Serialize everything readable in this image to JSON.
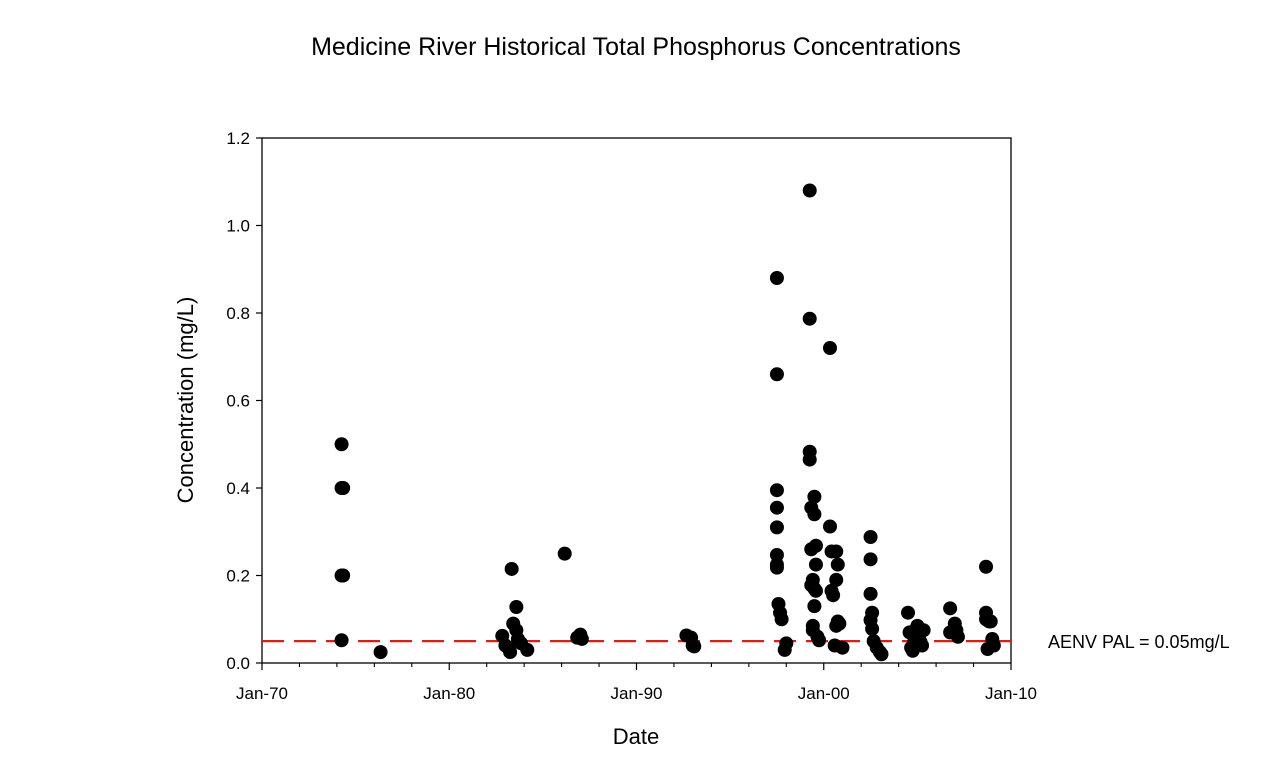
{
  "chart_data": {
    "type": "scatter",
    "title": "Medicine River Historical Total Phosphorus Concentrations",
    "xlabel": "Date",
    "ylabel": "Concentration (mg/L)",
    "xlim": [
      "1970-01",
      "2010-01"
    ],
    "ylim": [
      0,
      1.2
    ],
    "x_ticks": [
      "Jan-70",
      "Jan-80",
      "Jan-90",
      "Jan-00",
      "Jan-10"
    ],
    "y_ticks": [
      "0.0",
      "0.2",
      "0.4",
      "0.6",
      "0.8",
      "1.0",
      "1.2"
    ],
    "grid": false,
    "marker_color": "#000000",
    "reference_line": {
      "label": "AENV PAL = 0.05mg/L",
      "value": 0.05,
      "color": "#d42020",
      "style": "dashed"
    },
    "series": [
      {
        "points": [
          [
            "1974-04",
            0.5
          ],
          [
            "1974-04",
            0.4
          ],
          [
            "1974-05",
            0.4
          ],
          [
            "1974-04",
            0.2
          ],
          [
            "1974-05",
            0.2
          ],
          [
            "1974-04",
            0.052
          ],
          [
            "1976-05",
            0.025
          ],
          [
            "1982-11",
            0.062
          ],
          [
            "1983-01",
            0.04
          ],
          [
            "1983-03",
            0.035
          ],
          [
            "1983-04",
            0.025
          ],
          [
            "1983-05",
            0.215
          ],
          [
            "1983-06",
            0.09
          ],
          [
            "1983-08",
            0.128
          ],
          [
            "1983-08",
            0.075
          ],
          [
            "1983-09",
            0.055
          ],
          [
            "1983-11",
            0.045
          ],
          [
            "1984-03",
            0.03
          ],
          [
            "1986-03",
            0.25
          ],
          [
            "1986-11",
            0.058
          ],
          [
            "1987-01",
            0.065
          ],
          [
            "1987-02",
            0.055
          ],
          [
            "1992-09",
            0.063
          ],
          [
            "1992-12",
            0.058
          ],
          [
            "1993-01",
            0.04
          ],
          [
            "1993-02",
            0.038
          ],
          [
            "1997-07",
            0.88
          ],
          [
            "1997-07",
            0.66
          ],
          [
            "1997-07",
            0.395
          ],
          [
            "1997-07",
            0.355
          ],
          [
            "1997-07",
            0.31
          ],
          [
            "1997-07",
            0.247
          ],
          [
            "1997-07",
            0.225
          ],
          [
            "1997-07",
            0.218
          ],
          [
            "1997-08",
            0.135
          ],
          [
            "1997-09",
            0.115
          ],
          [
            "1997-10",
            0.1
          ],
          [
            "1997-12",
            0.03
          ],
          [
            "1998-01",
            0.045
          ],
          [
            "1999-04",
            1.08
          ],
          [
            "1999-04",
            0.787
          ],
          [
            "1999-04",
            0.483
          ],
          [
            "1999-04",
            0.465
          ],
          [
            "1999-05",
            0.355
          ],
          [
            "1999-07",
            0.38
          ],
          [
            "1999-07",
            0.34
          ],
          [
            "1999-05",
            0.26
          ],
          [
            "1999-08",
            0.268
          ],
          [
            "1999-08",
            0.225
          ],
          [
            "1999-06",
            0.19
          ],
          [
            "1999-05",
            0.178
          ],
          [
            "1999-07",
            0.17
          ],
          [
            "1999-08",
            0.165
          ],
          [
            "1999-07",
            0.13
          ],
          [
            "1999-06",
            0.085
          ],
          [
            "1999-06",
            0.075
          ],
          [
            "1999-09",
            0.06
          ],
          [
            "1999-10",
            0.052
          ],
          [
            "2000-05",
            0.72
          ],
          [
            "2000-05",
            0.312
          ],
          [
            "2000-06",
            0.255
          ],
          [
            "2000-09",
            0.255
          ],
          [
            "2000-10",
            0.225
          ],
          [
            "2000-09",
            0.19
          ],
          [
            "2000-06",
            0.165
          ],
          [
            "2000-07",
            0.155
          ],
          [
            "2000-10",
            0.095
          ],
          [
            "2000-09",
            0.085
          ],
          [
            "2000-11",
            0.09
          ],
          [
            "2000-08",
            0.04
          ],
          [
            "2001-01",
            0.035
          ],
          [
            "2002-07",
            0.288
          ],
          [
            "2002-07",
            0.237
          ],
          [
            "2002-07",
            0.158
          ],
          [
            "2002-08",
            0.115
          ],
          [
            "2002-07",
            0.098
          ],
          [
            "2002-08",
            0.078
          ],
          [
            "2002-09",
            0.05
          ],
          [
            "2002-11",
            0.035
          ],
          [
            "2003-01",
            0.025
          ],
          [
            "2003-02",
            0.02
          ],
          [
            "2004-07",
            0.115
          ],
          [
            "2004-08",
            0.07
          ],
          [
            "2004-09",
            0.035
          ],
          [
            "2004-10",
            0.028
          ],
          [
            "2004-11",
            0.048
          ],
          [
            "2005-01",
            0.085
          ],
          [
            "2005-02",
            0.06
          ],
          [
            "2005-03",
            0.048
          ],
          [
            "2005-05",
            0.075
          ],
          [
            "2005-04",
            0.04
          ],
          [
            "2006-10",
            0.125
          ],
          [
            "2006-10",
            0.07
          ],
          [
            "2007-01",
            0.09
          ],
          [
            "2007-02",
            0.075
          ],
          [
            "2007-03",
            0.06
          ],
          [
            "2008-09",
            0.22
          ],
          [
            "2008-09",
            0.115
          ],
          [
            "2008-09",
            0.1
          ],
          [
            "2008-10",
            0.098
          ],
          [
            "2008-11",
            0.095
          ],
          [
            "2008-12",
            0.095
          ],
          [
            "2009-01",
            0.055
          ],
          [
            "2008-10",
            0.032
          ],
          [
            "2009-02",
            0.04
          ]
        ]
      }
    ]
  }
}
